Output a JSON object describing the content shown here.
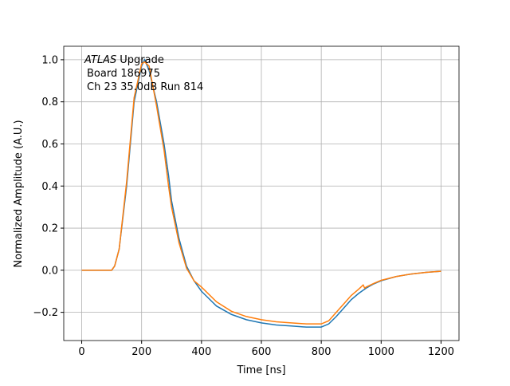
{
  "chart_data": {
    "type": "line",
    "xlabel": "Time [ns]",
    "ylabel": "Normalized Amplitude (A.U.)",
    "annotation": {
      "experiment": "ATLAS",
      "text": [
        "Upgrade",
        "Board 186975",
        "Ch 23 35.0dB  Run 814"
      ]
    },
    "x": [
      0,
      50,
      100,
      110,
      125,
      150,
      175,
      200,
      210,
      225,
      250,
      275,
      290,
      300,
      325,
      350,
      375,
      400,
      450,
      500,
      550,
      600,
      650,
      700,
      750,
      800,
      825,
      850,
      875,
      900,
      925,
      940,
      945,
      950,
      975,
      1000,
      1050,
      1100,
      1150,
      1200
    ],
    "series": [
      {
        "color": "#1f77b4",
        "values": [
          0,
          0,
          0,
          0.02,
          0.1,
          0.4,
          0.8,
          0.97,
          1.0,
          0.95,
          0.8,
          0.6,
          0.45,
          0.33,
          0.15,
          0.02,
          -0.05,
          -0.1,
          -0.17,
          -0.21,
          -0.235,
          -0.25,
          -0.26,
          -0.265,
          -0.27,
          -0.27,
          -0.255,
          -0.22,
          -0.18,
          -0.14,
          -0.11,
          -0.095,
          -0.09,
          -0.085,
          -0.065,
          -0.05,
          -0.03,
          -0.018,
          -0.01,
          -0.005
        ]
      },
      {
        "color": "#ff7f0e",
        "values": [
          0,
          0,
          0,
          0.02,
          0.1,
          0.42,
          0.82,
          0.98,
          0.99,
          0.97,
          0.78,
          0.57,
          0.4,
          0.3,
          0.13,
          0.01,
          -0.05,
          -0.08,
          -0.15,
          -0.195,
          -0.22,
          -0.235,
          -0.245,
          -0.25,
          -0.255,
          -0.255,
          -0.24,
          -0.2,
          -0.16,
          -0.12,
          -0.09,
          -0.07,
          -0.085,
          -0.08,
          -0.063,
          -0.048,
          -0.03,
          -0.018,
          -0.01,
          -0.005
        ]
      }
    ],
    "xlim": [
      -60,
      1260
    ],
    "ylim": [
      -0.334,
      1.064
    ],
    "xticks": [
      0,
      200,
      400,
      600,
      800,
      1000,
      1200
    ],
    "yticks": [
      {
        "value": -0.2,
        "label": "−0.2"
      },
      {
        "value": 0,
        "label": "0.0"
      },
      0.2,
      0.4,
      0.6,
      0.8,
      {
        "value": 1,
        "label": "1.0"
      }
    ],
    "grid": true
  }
}
